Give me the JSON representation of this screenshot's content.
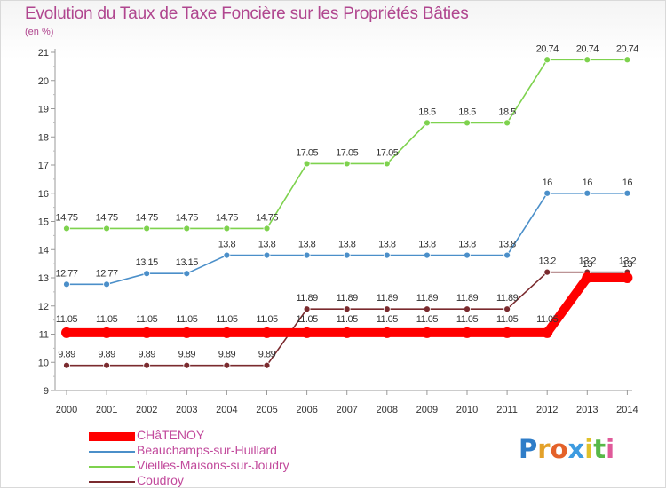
{
  "chart_data": {
    "type": "line",
    "title": "Evolution du Taux de Taxe Foncière sur les Propriétés Bâties",
    "ylabel": "(en %)",
    "xlabel": "",
    "ylim": [
      9,
      21
    ],
    "yticks": [
      9,
      10,
      11,
      12,
      13,
      14,
      15,
      16,
      17,
      18,
      19,
      20,
      21
    ],
    "categories": [
      "2000",
      "2001",
      "2002",
      "2003",
      "2004",
      "2005",
      "2006",
      "2007",
      "2008",
      "2009",
      "2010",
      "2011",
      "2012",
      "2013",
      "2014"
    ],
    "series": [
      {
        "name": "CHâTENOY",
        "color": "#ff0000",
        "values": [
          11.05,
          11.05,
          11.05,
          11.05,
          11.05,
          11.05,
          11.05,
          11.05,
          11.05,
          11.05,
          11.05,
          11.05,
          11.05,
          13.0,
          13.0
        ],
        "labels": [
          "11.05",
          "11.05",
          "11.05",
          "11.05",
          "11.05",
          "11.05",
          "11.05",
          "11.05",
          "11.05",
          "11.05",
          "11.05",
          "11.05",
          "11.05",
          "13",
          "13"
        ]
      },
      {
        "name": "Beauchamps-sur-Huillard",
        "color": "#4b8fc9",
        "values": [
          12.77,
          12.77,
          13.15,
          13.15,
          13.8,
          13.8,
          13.8,
          13.8,
          13.8,
          13.8,
          13.8,
          13.8,
          16,
          16,
          16
        ],
        "labels": [
          "12.77",
          "12.77",
          "13.15",
          "13.15",
          "13.8",
          "13.8",
          "13.8",
          "13.8",
          "13.8",
          "13.8",
          "13.8",
          "13.8",
          "16",
          "16",
          "16"
        ]
      },
      {
        "name": "Vieilles-Maisons-sur-Joudry",
        "color": "#7ed24e",
        "values": [
          14.75,
          14.75,
          14.75,
          14.75,
          14.75,
          14.75,
          17.05,
          17.05,
          17.05,
          18.5,
          18.5,
          18.5,
          20.74,
          20.74,
          20.74
        ],
        "labels": [
          "14.75",
          "14.75",
          "14.75",
          "14.75",
          "14.75",
          "14.75",
          "17.05",
          "17.05",
          "17.05",
          "18.5",
          "18.5",
          "18.5",
          "20.74",
          "20.74",
          "20.74"
        ]
      },
      {
        "name": "Coudroy",
        "color": "#7a2a2e",
        "values": [
          9.89,
          9.89,
          9.89,
          9.89,
          9.89,
          9.89,
          11.89,
          11.89,
          11.89,
          11.89,
          11.89,
          11.89,
          13.2,
          13.2,
          13.2
        ],
        "labels": [
          "9.89",
          "9.89",
          "9.89",
          "9.89",
          "9.89",
          "9.89",
          "11.89",
          "11.89",
          "11.89",
          "11.89",
          "11.89",
          "11.89",
          "13.2",
          "13.2",
          "13.2"
        ]
      }
    ],
    "grid": false,
    "legend_position": "bottom-left"
  },
  "logo": {
    "letters": [
      "P",
      "r",
      "o",
      "x",
      "i",
      "t",
      "i"
    ],
    "colors": [
      "#2f7dc8",
      "#e3a12a",
      "#e4622a",
      "#3d9be0",
      "#e0c12a",
      "#58b848",
      "#e05a9a"
    ]
  }
}
